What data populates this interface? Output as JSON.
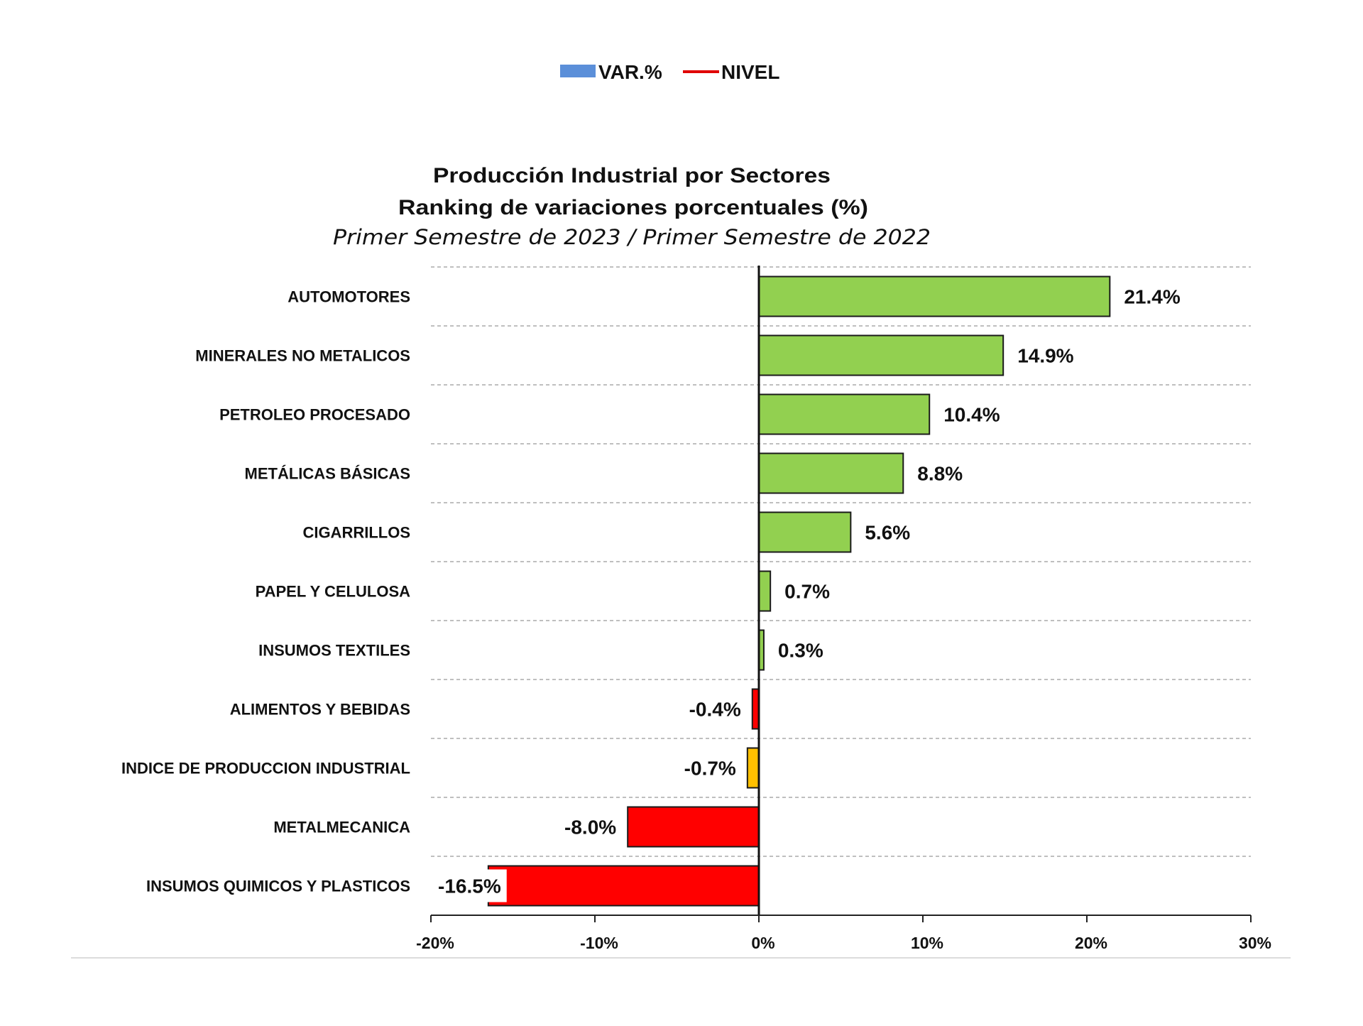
{
  "legend": {
    "items": [
      {
        "label": "VAR.%",
        "color": "#5B8FD9",
        "kind": "swatch"
      },
      {
        "label": "NIVEL",
        "color": "#E00000",
        "kind": "line"
      }
    ]
  },
  "title": {
    "line1": "Producción Industrial por Sectores",
    "line2": "Ranking de variaciones porcentuales (%)",
    "line3": "Primer Semestre de 2023 / Primer Semestre de 2022"
  },
  "chart_data": {
    "type": "bar",
    "orientation": "horizontal",
    "title": "Producción Industrial por Sectores / Ranking de variaciones porcentuales (%)",
    "subtitle": "Primer Semestre de 2023 / Primer Semestre de 2022",
    "xlabel": "",
    "ylabel": "",
    "xlim": [
      -20,
      30
    ],
    "xticks": [
      -20,
      -10,
      0,
      10,
      20,
      30
    ],
    "xtick_labels": [
      "-20%",
      "-10%",
      "0%",
      "10%",
      "20%",
      "30%"
    ],
    "grid": "horizontal dashed",
    "legend_position": "top-center",
    "categories": [
      "AUTOMOTORES",
      "MINERALES NO METALICOS",
      "PETROLEO PROCESADO",
      "METÁLICAS BÁSICAS",
      "CIGARRILLOS",
      "PAPEL Y CELULOSA",
      "INSUMOS TEXTILES",
      "ALIMENTOS Y BEBIDAS",
      "INDICE DE PRODUCCION INDUSTRIAL",
      "METALMECANICA",
      "INSUMOS QUIMICOS Y PLASTICOS"
    ],
    "values": [
      21.4,
      14.9,
      10.4,
      8.8,
      5.6,
      0.7,
      0.3,
      -0.4,
      -0.7,
      -8.0,
      -16.5
    ],
    "value_labels": [
      "21.4%",
      "14.9%",
      "10.4%",
      "8.8%",
      "5.6%",
      "0.7%",
      "0.3%",
      "-0.4%",
      "-0.7%",
      "-8.0%",
      "-16.5%"
    ],
    "colors": {
      "positive": "#92D050",
      "negative": "#FF0000",
      "index": "#FFC000",
      "outline": "#1a1a1a",
      "grid": "#bfbfbf"
    },
    "highlight_index_category": "INDICE DE PRODUCCION INDUSTRIAL"
  }
}
